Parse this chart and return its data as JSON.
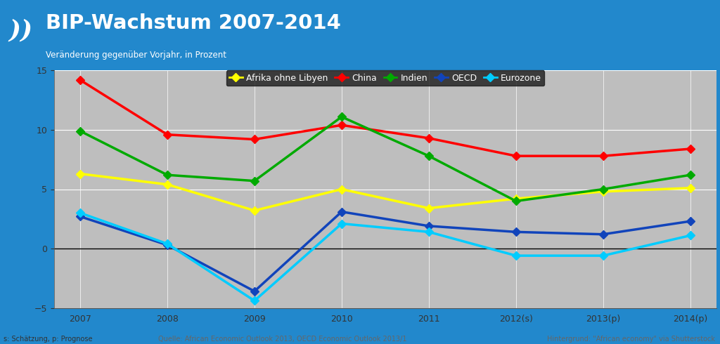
{
  "title": "BIP-Wachstum 2007-2014",
  "subtitle": "Veränderung gegenüber Vorjahr, in Prozent",
  "footer_left": "s: Schätzung, p: Prognose",
  "footer_center": "Quelle: African Economic Outlook 2013, OECD Economic Outlook 2013/1",
  "footer_right": "Hintergrund: \"African economy\" via Shutterstock",
  "x_labels": [
    "2007",
    "2008",
    "2009",
    "2010",
    "2011",
    "2012(s)",
    "2013(p)",
    "2014(p)"
  ],
  "x_values": [
    0,
    1,
    2,
    3,
    4,
    5,
    6,
    7
  ],
  "ylim": [
    -5,
    15
  ],
  "yticks": [
    -5,
    0,
    5,
    10,
    15
  ],
  "header_bg": "#2288CC",
  "plot_bg": "#BEBEBE",
  "legend_bg": "#1a1a1a",
  "series": [
    {
      "label": "Afrika ohne Libyen",
      "color": "#FFFF00",
      "marker": "D",
      "markersize": 6,
      "linewidth": 2.5,
      "values": [
        6.3,
        5.4,
        3.2,
        5.0,
        3.4,
        4.2,
        4.8,
        5.1
      ]
    },
    {
      "label": "China",
      "color": "#FF0000",
      "marker": "D",
      "markersize": 6,
      "linewidth": 2.5,
      "values": [
        14.2,
        9.6,
        9.2,
        10.4,
        9.3,
        7.8,
        7.8,
        8.4
      ]
    },
    {
      "label": "Indien",
      "color": "#00AA00",
      "marker": "D",
      "markersize": 6,
      "linewidth": 2.5,
      "values": [
        9.9,
        6.2,
        5.7,
        11.1,
        7.8,
        4.0,
        5.0,
        6.2
      ]
    },
    {
      "label": "OECD",
      "color": "#1144BB",
      "marker": "D",
      "markersize": 6,
      "linewidth": 2.5,
      "values": [
        2.7,
        0.3,
        -3.6,
        3.1,
        1.9,
        1.4,
        1.2,
        2.3
      ]
    },
    {
      "label": "Eurozone",
      "color": "#00CCFF",
      "marker": "D",
      "markersize": 6,
      "linewidth": 2.5,
      "values": [
        3.0,
        0.4,
        -4.4,
        2.1,
        1.4,
        -0.6,
        -0.6,
        1.1
      ]
    }
  ]
}
